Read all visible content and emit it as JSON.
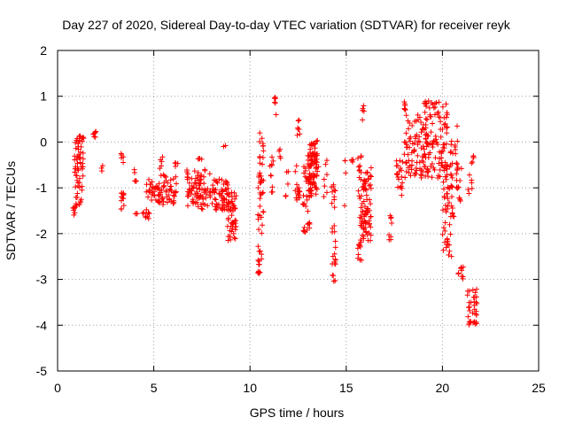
{
  "chart_data": {
    "type": "scatter",
    "title": "Day 227 of 2020, Sidereal Day-to-day VTEC variation (SDTVAR) for receiver reyk",
    "xlabel": "GPS time / hours",
    "ylabel": "SDTVAR / TECUs",
    "xlim": [
      0,
      25
    ],
    "ylim": [
      -5,
      2
    ],
    "xticks": [
      "0",
      "5",
      "10",
      "15",
      "20",
      "25"
    ],
    "yticks": [
      "-5",
      "-4",
      "-3",
      "-2",
      "-1",
      "0",
      "1",
      "2"
    ],
    "grid": true,
    "marker": "+",
    "color": "#ff0000",
    "series": [
      {
        "name": "reyk",
        "clusters": [
          {
            "x": [
              0.75,
              0.95
            ],
            "y": [
              -1.6,
              -1.4
            ],
            "n": 8
          },
          {
            "x": [
              0.85,
              1.35
            ],
            "y": [
              -0.9,
              0.1
            ],
            "n": 40
          },
          {
            "x": [
              0.9,
              1.3
            ],
            "y": [
              -1.4,
              -0.9
            ],
            "n": 14
          },
          {
            "x": [
              1.1,
              1.4
            ],
            "y": [
              0.0,
              0.15
            ],
            "n": 8
          },
          {
            "x": [
              1.85,
              2.0
            ],
            "y": [
              0.1,
              0.25
            ],
            "n": 6
          },
          {
            "x": [
              2.25,
              2.35
            ],
            "y": [
              -1.1,
              -0.5
            ],
            "n": 3
          },
          {
            "x": [
              3.2,
              3.45
            ],
            "y": [
              -1.5,
              -1.1
            ],
            "n": 12
          },
          {
            "x": [
              3.3,
              3.45
            ],
            "y": [
              -0.45,
              -0.25
            ],
            "n": 5
          },
          {
            "x": [
              3.95,
              4.1
            ],
            "y": [
              -0.9,
              -0.5
            ],
            "n": 5
          },
          {
            "x": [
              4.0,
              4.15
            ],
            "y": [
              -1.6,
              -1.4
            ],
            "n": 3
          },
          {
            "x": [
              4.4,
              4.8
            ],
            "y": [
              -1.7,
              -1.4
            ],
            "n": 10
          },
          {
            "x": [
              4.6,
              5.3
            ],
            "y": [
              -1.3,
              -0.8
            ],
            "n": 28
          },
          {
            "x": [
              5.2,
              6.2
            ],
            "y": [
              -1.4,
              -0.7
            ],
            "n": 50
          },
          {
            "x": [
              5.3,
              5.5
            ],
            "y": [
              -0.6,
              -0.2
            ],
            "n": 5
          },
          {
            "x": [
              6.1,
              6.3
            ],
            "y": [
              -0.55,
              -0.45
            ],
            "n": 4
          },
          {
            "x": [
              6.7,
              8.0
            ],
            "y": [
              -1.5,
              -0.6
            ],
            "n": 80
          },
          {
            "x": [
              7.3,
              7.5
            ],
            "y": [
              -0.45,
              -0.35
            ],
            "n": 4
          },
          {
            "x": [
              8.0,
              8.9
            ],
            "y": [
              -1.5,
              -0.8
            ],
            "n": 60
          },
          {
            "x": [
              8.6,
              8.8
            ],
            "y": [
              -0.1,
              -0.05
            ],
            "n": 2
          },
          {
            "x": [
              8.8,
              9.3
            ],
            "y": [
              -2.2,
              -1.1
            ],
            "n": 50
          },
          {
            "x": [
              10.4,
              10.6
            ],
            "y": [
              -3.0,
              -2.2
            ],
            "n": 14
          },
          {
            "x": [
              10.4,
              10.7
            ],
            "y": [
              -2.0,
              -0.6
            ],
            "n": 25
          },
          {
            "x": [
              10.5,
              10.7
            ],
            "y": [
              -0.5,
              0.25
            ],
            "n": 12
          },
          {
            "x": [
              11.0,
              11.25
            ],
            "y": [
              -1.1,
              -0.3
            ],
            "n": 10
          },
          {
            "x": [
              11.25,
              11.4
            ],
            "y": [
              0.5,
              1.15
            ],
            "n": 6
          },
          {
            "x": [
              11.5,
              11.7
            ],
            "y": [
              -0.4,
              -0.1
            ],
            "n": 4
          },
          {
            "x": [
              11.85,
              12.05
            ],
            "y": [
              -1.2,
              -0.5
            ],
            "n": 5
          },
          {
            "x": [
              12.35,
              12.6
            ],
            "y": [
              -1.4,
              -0.5
            ],
            "n": 15
          },
          {
            "x": [
              12.45,
              12.6
            ],
            "y": [
              0.1,
              0.5
            ],
            "n": 7
          },
          {
            "x": [
              12.7,
              13.2
            ],
            "y": [
              -2.0,
              -0.4
            ],
            "n": 35
          },
          {
            "x": [
              13.0,
              13.5
            ],
            "y": [
              -1.2,
              0.0
            ],
            "n": 70
          },
          {
            "x": [
              13.3,
              13.6
            ],
            "y": [
              -0.6,
              0.05
            ],
            "n": 15
          },
          {
            "x": [
              13.8,
              14.0
            ],
            "y": [
              -1.2,
              -0.4
            ],
            "n": 7
          },
          {
            "x": [
              14.2,
              14.45
            ],
            "y": [
              -1.5,
              -0.9
            ],
            "n": 10
          },
          {
            "x": [
              14.25,
              14.45
            ],
            "y": [
              -3.1,
              -1.8
            ],
            "n": 18
          },
          {
            "x": [
              14.9,
              15.0
            ],
            "y": [
              -1.4,
              -0.1
            ],
            "n": 4
          },
          {
            "x": [
              15.2,
              15.4
            ],
            "y": [
              -0.45,
              -0.35
            ],
            "n": 4
          },
          {
            "x": [
              15.6,
              15.85
            ],
            "y": [
              -2.6,
              -0.2
            ],
            "n": 35
          },
          {
            "x": [
              15.8,
              15.95
            ],
            "y": [
              0.3,
              0.8
            ],
            "n": 5
          },
          {
            "x": [
              15.85,
              16.3
            ],
            "y": [
              -2.2,
              -0.8
            ],
            "n": 60
          },
          {
            "x": [
              16.0,
              16.3
            ],
            "y": [
              -0.8,
              -0.5
            ],
            "n": 6
          },
          {
            "x": [
              17.2,
              17.4
            ],
            "y": [
              -2.2,
              -1.6
            ],
            "n": 8
          },
          {
            "x": [
              17.6,
              18.0
            ],
            "y": [
              -1.2,
              -0.4
            ],
            "n": 20
          },
          {
            "x": [
              18.0,
              18.2
            ],
            "y": [
              1.0,
              0.7
            ],
            "n": 6
          },
          {
            "x": [
              18.0,
              19.0
            ],
            "y": [
              -0.8,
              0.6
            ],
            "n": 70
          },
          {
            "x": [
              19.0,
              20.3
            ],
            "y": [
              -0.8,
              0.9
            ],
            "n": 120
          },
          {
            "x": [
              20.0,
              20.6
            ],
            "y": [
              -2.6,
              -0.5
            ],
            "n": 55
          },
          {
            "x": [
              20.4,
              20.8
            ],
            "y": [
              -0.5,
              0.4
            ],
            "n": 15
          },
          {
            "x": [
              20.7,
              21.0
            ],
            "y": [
              -1.5,
              -0.5
            ],
            "n": 15
          },
          {
            "x": [
              20.8,
              21.1
            ],
            "y": [
              -3.0,
              -2.6
            ],
            "n": 10
          },
          {
            "x": [
              21.3,
              21.55
            ],
            "y": [
              -1.2,
              -0.7
            ],
            "n": 6
          },
          {
            "x": [
              21.5,
              21.65
            ],
            "y": [
              -0.5,
              -0.25
            ],
            "n": 5
          },
          {
            "x": [
              21.3,
              21.8
            ],
            "y": [
              -4.0,
              -3.2
            ],
            "n": 35
          }
        ]
      }
    ]
  }
}
